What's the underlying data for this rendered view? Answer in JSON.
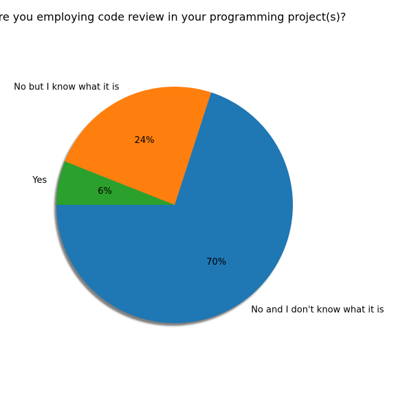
{
  "chart_data": {
    "type": "pie",
    "title": "Are you employing code review in your programming project(s)?",
    "categories": [
      "No and I don't know what it is",
      "No but I know what it is",
      "Yes"
    ],
    "values": [
      70,
      24,
      6
    ],
    "percent_labels": [
      "70%",
      "24%",
      "6%"
    ],
    "colors": [
      "#1f77b4",
      "#ff7f0e",
      "#2ca02c"
    ],
    "start_angle_deg": 180,
    "direction": "counterclockwise",
    "shadow": true,
    "legend": "none"
  }
}
